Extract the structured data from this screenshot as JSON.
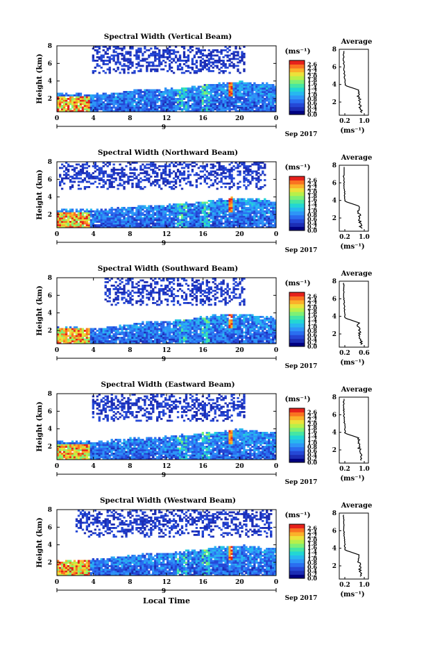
{
  "chart_data": [
    {
      "type": "heatmap",
      "title": "Spectral Width (Vertical Beam)",
      "ylabel": "Height (km)",
      "y_ticks": [
        "2",
        "4",
        "6",
        "8"
      ],
      "x_ticks": [
        "0",
        "4",
        "8",
        "12",
        "16",
        "20",
        "0"
      ],
      "day_label": "9",
      "date_label": "Sep 2017",
      "xlim": [
        0,
        24
      ],
      "ylim": [
        0.5,
        8
      ],
      "colorbar": {
        "unit": "(ms⁻¹)",
        "ticks": [
          "2.6",
          "2.4",
          "2.2",
          "2.0",
          "1.8",
          "1.6",
          "1.4",
          "1.2",
          "1.0",
          "0.8",
          "0.6",
          "0.4",
          "0.2",
          "0.0"
        ],
        "range": [
          0,
          2.8
        ]
      },
      "profile": {
        "title": "Average",
        "xlabel": "(ms⁻¹)",
        "x_ticks": [
          "0.2",
          "1.0"
        ],
        "y_ticks": [
          "2",
          "4",
          "6",
          "8"
        ]
      },
      "lower_layer_top_km": [
        2.6,
        2.6,
        2.5,
        2.7,
        2.9,
        3.0,
        3.1,
        3.3,
        3.5,
        3.8,
        3.9,
        3.8,
        3.5
      ],
      "upper_echo_span_hours": [
        3.8,
        20.5
      ]
    },
    {
      "type": "heatmap",
      "title": "Spectral Width (Northward Beam)",
      "ylabel": "Height (km)",
      "y_ticks": [
        "2",
        "4",
        "6",
        "8"
      ],
      "x_ticks": [
        "0",
        "4",
        "8",
        "12",
        "16",
        "20",
        "0"
      ],
      "day_label": "9",
      "date_label": "Sep 2017",
      "xlim": [
        0,
        24
      ],
      "ylim": [
        0.5,
        8
      ],
      "colorbar": {
        "unit": "(ms⁻¹)",
        "ticks": [
          "2.6",
          "2.4",
          "2.2",
          "2.0",
          "1.8",
          "1.6",
          "1.4",
          "1.2",
          "1.0",
          "0.8",
          "0.6",
          "0.4",
          "0.2",
          "0.0"
        ],
        "range": [
          0,
          2.8
        ]
      },
      "profile": {
        "title": "Average",
        "xlabel": "(ms⁻¹)",
        "x_ticks": [
          "0.2",
          "1.0"
        ],
        "y_ticks": [
          "2",
          "4",
          "6",
          "8"
        ]
      },
      "lower_layer_top_km": [
        2.6,
        2.6,
        2.5,
        2.7,
        2.9,
        3.0,
        3.1,
        3.3,
        3.5,
        3.8,
        3.9,
        3.8,
        3.5
      ],
      "upper_echo_span_hours": [
        0.2,
        22.8
      ]
    },
    {
      "type": "heatmap",
      "title": "Spectral Width (Southward Beam)",
      "ylabel": "Height (km)",
      "y_ticks": [
        "2",
        "4",
        "6",
        "8"
      ],
      "x_ticks": [
        "0",
        "4",
        "8",
        "12",
        "16",
        "20",
        "0"
      ],
      "day_label": "9",
      "date_label": "Sep 2017",
      "xlim": [
        0,
        24
      ],
      "ylim": [
        0.5,
        8
      ],
      "colorbar": {
        "unit": "(ms⁻¹)",
        "ticks": [
          "2.6",
          "2.4",
          "2.2",
          "2.0",
          "1.8",
          "1.6",
          "1.4",
          "1.2",
          "1.0",
          "0.8",
          "0.6",
          "0.4",
          "0.2",
          "0.0"
        ],
        "range": [
          0,
          2.8
        ]
      },
      "profile": {
        "title": "Average",
        "xlabel": "(ms⁻¹)",
        "x_ticks": [
          "0.2",
          "0.6"
        ],
        "y_ticks": [
          "2",
          "4",
          "6",
          "8"
        ]
      },
      "lower_layer_top_km": [
        2.4,
        2.3,
        2.2,
        2.5,
        2.8,
        3.0,
        3.1,
        3.3,
        3.6,
        3.8,
        3.9,
        3.7,
        3.5
      ],
      "upper_echo_span_hours": [
        5.0,
        20.5
      ]
    },
    {
      "type": "heatmap",
      "title": "Spectral Width (Eastward Beam)",
      "ylabel": "Height (km)",
      "y_ticks": [
        "2",
        "4",
        "6",
        "8"
      ],
      "x_ticks": [
        "0",
        "4",
        "8",
        "12",
        "16",
        "20",
        "0"
      ],
      "day_label": "9",
      "date_label": "Sep 2017",
      "xlim": [
        0,
        24
      ],
      "ylim": [
        0.5,
        8
      ],
      "colorbar": {
        "unit": "(ms⁻¹)",
        "ticks": [
          "2.6",
          "2.4",
          "2.2",
          "2.0",
          "1.8",
          "1.6",
          "1.4",
          "1.2",
          "1.0",
          "0.8",
          "0.6",
          "0.4",
          "0.2",
          "0.0"
        ],
        "range": [
          0,
          2.8
        ]
      },
      "profile": {
        "title": "Average",
        "xlabel": "(ms⁻¹)",
        "x_ticks": [
          "0.2",
          "1.0"
        ],
        "y_ticks": [
          "2",
          "4",
          "6",
          "8"
        ]
      },
      "lower_layer_top_km": [
        2.6,
        2.6,
        2.5,
        2.7,
        2.9,
        3.0,
        3.1,
        3.3,
        3.5,
        3.8,
        3.9,
        3.8,
        3.5
      ],
      "upper_echo_span_hours": [
        3.8,
        20.5
      ]
    },
    {
      "type": "heatmap",
      "title": "Spectral Width (Westward Beam)",
      "ylabel": "Height (km)",
      "y_ticks": [
        "2",
        "4",
        "6",
        "8"
      ],
      "x_ticks": [
        "0",
        "4",
        "8",
        "12",
        "16",
        "20",
        "0"
      ],
      "day_label": "9",
      "date_label": "Sep 2017",
      "xlabel": "Local Time",
      "xlim": [
        0,
        24
      ],
      "ylim": [
        0.5,
        8
      ],
      "colorbar": {
        "unit": "(ms⁻¹)",
        "ticks": [
          "2.6",
          "2.4",
          "2.2",
          "2.0",
          "1.8",
          "1.6",
          "1.4",
          "1.2",
          "1.0",
          "0.8",
          "0.6",
          "0.4",
          "0.2",
          "0.0"
        ],
        "range": [
          0,
          2.8
        ]
      },
      "profile": {
        "title": "Average",
        "xlabel": "(ms⁻¹)",
        "x_ticks": [
          "0.2",
          "1.0"
        ],
        "y_ticks": [
          "2",
          "4",
          "6",
          "8"
        ]
      },
      "lower_layer_top_km": [
        2.2,
        2.2,
        2.3,
        2.6,
        2.8,
        3.0,
        3.1,
        3.3,
        3.5,
        3.8,
        3.9,
        3.7,
        3.5
      ],
      "upper_echo_span_hours": [
        2.0,
        23.5
      ]
    }
  ],
  "colors": {
    "colormap": [
      "#000080",
      "#1c2db4",
      "#2548d6",
      "#2a6ef0",
      "#2e95f7",
      "#27b8ef",
      "#22d6d4",
      "#45e6a4",
      "#7ef075",
      "#b8f04a",
      "#ece13a",
      "#fbb02a",
      "#fa7221",
      "#e6211b"
    ]
  }
}
